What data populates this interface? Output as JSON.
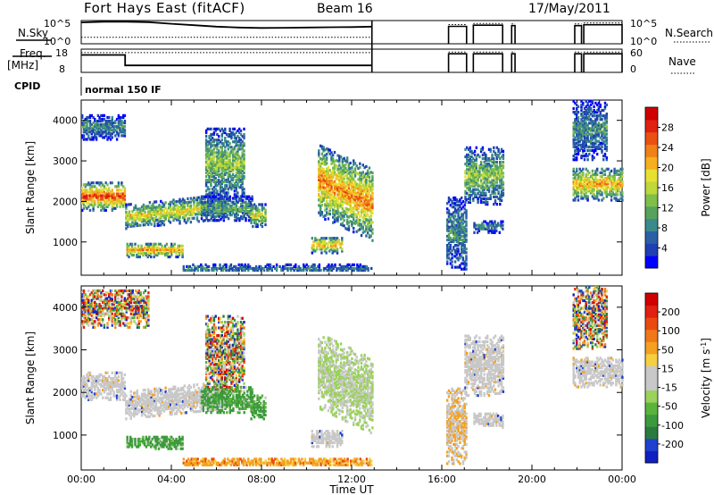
{
  "header": {
    "site": "Fort Hays East (fitACF)",
    "beam": "Beam 16",
    "date": "17/May/2011"
  },
  "chart_data": [
    {
      "type": "line",
      "panel": "noise",
      "left_label": "N.Sky",
      "right_label": "N.Search",
      "left_ticks": [
        "10^5",
        "10^0"
      ],
      "right_ticks": [
        "10^5",
        "10^0"
      ],
      "xlim": [
        0,
        24
      ],
      "series": [
        {
          "name": "N.Sky",
          "style": "solid",
          "x": [
            0,
            1,
            2,
            3,
            4,
            5,
            6,
            7,
            8,
            9,
            10,
            11,
            12,
            12.9
          ],
          "y": [
            0.92,
            0.95,
            0.95,
            0.93,
            0.86,
            0.8,
            0.74,
            0.7,
            0.68,
            0.69,
            0.7,
            0.71,
            0.72,
            0.74
          ]
        },
        {
          "name": "N.Search",
          "style": "dotted",
          "x": [
            0,
            12.9
          ],
          "y": [
            0.28,
            0.28
          ]
        }
      ],
      "segments": [
        {
          "x0": 16.3,
          "x1": 17.1,
          "y": 0.75
        },
        {
          "x0": 17.4,
          "x1": 18.7,
          "y": 0.8
        },
        {
          "x0": 19.1,
          "x1": 19.25,
          "y": 0.78
        },
        {
          "x0": 21.9,
          "x1": 22.2,
          "y": 0.78
        },
        {
          "x0": 22.3,
          "x1": 24,
          "y": 0.82
        }
      ]
    },
    {
      "type": "line",
      "panel": "frequency",
      "left_label_lines": [
        "Freq.",
        "[MHz]"
      ],
      "right_label": "Nave",
      "left_ticks": [
        "18",
        "8"
      ],
      "right_ticks": [
        "60",
        "0"
      ],
      "xlim": [
        0,
        24
      ],
      "series": [
        {
          "name": "Freq.",
          "style": "solid",
          "x": [
            0,
            1.95,
            1.95,
            12.9
          ],
          "y": [
            0.75,
            0.75,
            0.3,
            0.3
          ]
        },
        {
          "name": "Nave",
          "style": "dotted",
          "x": [
            0,
            12.9
          ],
          "y": [
            0.85,
            0.85
          ]
        }
      ],
      "segments": [
        {
          "x0": 16.3,
          "x1": 17.1,
          "y": 0.8
        },
        {
          "x0": 17.4,
          "x1": 18.7,
          "y": 0.8
        },
        {
          "x0": 19.1,
          "x1": 19.25,
          "y": 0.8
        },
        {
          "x0": 21.9,
          "x1": 22.2,
          "y": 0.8
        },
        {
          "x0": 22.3,
          "x1": 24,
          "y": 0.8
        }
      ]
    },
    {
      "type": "table",
      "panel": "cpid",
      "label": "CPID",
      "entries": [
        {
          "x": 0,
          "text": "normal 150 IF"
        }
      ]
    },
    {
      "type": "heatmap",
      "panel": "power",
      "ylabel": "Slant Range [km]",
      "xlim": [
        0,
        24
      ],
      "ylim": [
        180,
        4500
      ],
      "yticks": [
        1000,
        2000,
        3000,
        4000
      ],
      "colorbar": {
        "label": "Power [dB]",
        "ticks": [
          "4",
          "8",
          "12",
          "16",
          "20",
          "24",
          "28"
        ],
        "colors": [
          "#0000ff",
          "#1f3fb4",
          "#2a5fa6",
          "#3a8a8c",
          "#57a35c",
          "#7fbf4a",
          "#bfd83a",
          "#e8e030",
          "#f5b020",
          "#f08018",
          "#ea5010",
          "#e02010",
          "#d00000"
        ]
      },
      "blobs": [
        {
          "t0": 0,
          "t1": 1.95,
          "r0": 1750,
          "r1": 2450,
          "slope": 0,
          "v": 0.85
        },
        {
          "t0": 0,
          "t1": 1.95,
          "r0": 3500,
          "r1": 4100,
          "slope": 0,
          "v": 0.3
        },
        {
          "t0": 1.95,
          "t1": 6.5,
          "r0": 1300,
          "r1": 1900,
          "slope": 250,
          "v": 0.6
        },
        {
          "t0": 5.5,
          "t1": 7.2,
          "r0": 2000,
          "r1": 3800,
          "slope": 0,
          "v": 0.45
        },
        {
          "t0": 2.0,
          "t1": 4.5,
          "r0": 600,
          "r1": 950,
          "slope": 0,
          "v": 0.7
        },
        {
          "t0": 5.3,
          "t1": 7.6,
          "r0": 1500,
          "r1": 2100,
          "slope": 0,
          "v": 0.35
        },
        {
          "t0": 7.5,
          "t1": 8.2,
          "r0": 1350,
          "r1": 1900,
          "slope": 0,
          "v": 0.55
        },
        {
          "t0": 10.5,
          "t1": 12.9,
          "r0": 1600,
          "r1": 3400,
          "slope": -600,
          "v": 0.75
        },
        {
          "t0": 10.2,
          "t1": 11.6,
          "r0": 700,
          "r1": 1100,
          "slope": 0,
          "v": 0.7
        },
        {
          "t0": 4.5,
          "t1": 12.9,
          "r0": 180,
          "r1": 420,
          "slope": 0,
          "v": 0.25
        },
        {
          "t0": 16.2,
          "t1": 17.1,
          "r0": 300,
          "r1": 2100,
          "slope": 0,
          "v": 0.3
        },
        {
          "t0": 17.0,
          "t1": 18.7,
          "r0": 1900,
          "r1": 3300,
          "slope": 0,
          "v": 0.45
        },
        {
          "t0": 17.4,
          "t1": 18.7,
          "r0": 1200,
          "r1": 1500,
          "slope": 0,
          "v": 0.3
        },
        {
          "t0": 21.8,
          "t1": 24,
          "r0": 2000,
          "r1": 2800,
          "slope": 0,
          "v": 0.7
        },
        {
          "t0": 21.8,
          "t1": 23.3,
          "r0": 3000,
          "r1": 4450,
          "slope": 0,
          "v": 0.3
        }
      ]
    },
    {
      "type": "heatmap",
      "panel": "velocity",
      "ylabel": "Slant Range [km]",
      "xlabel": "Time UT",
      "xlim": [
        0,
        24
      ],
      "ylim": [
        180,
        4500
      ],
      "yticks": [
        1000,
        2000,
        3000,
        4000
      ],
      "xticks": [
        "00:00",
        "04:00",
        "08:00",
        "12:00",
        "16:00",
        "20:00",
        "00:00"
      ],
      "colorbar": {
        "label": "Velocity [m s^-1]",
        "ticks": [
          "200",
          "100",
          "50",
          "15",
          "-15",
          "-50",
          "-100",
          "-200"
        ],
        "colors": [
          "#1020c0",
          "#2040d0",
          "#2a7a40",
          "#3c9a3c",
          "#5ab43c",
          "#9ad25a",
          "#c8c8c8",
          "#c8c8c8",
          "#f4d040",
          "#f4a020",
          "#f07818",
          "#ea4a10",
          "#e02010",
          "#d00000"
        ]
      },
      "blobs": [
        {
          "t0": 0,
          "t1": 1.95,
          "r0": 1800,
          "r1": 2450,
          "slope": 0,
          "v": "gray"
        },
        {
          "t0": 1.95,
          "t1": 6.5,
          "r0": 1350,
          "r1": 2000,
          "slope": 250,
          "v": "gray"
        },
        {
          "t0": 5.5,
          "t1": 7.2,
          "r0": 2000,
          "r1": 3800,
          "slope": 0,
          "v": "mix"
        },
        {
          "t0": 2.0,
          "t1": 4.5,
          "r0": 650,
          "r1": 950,
          "slope": 0,
          "v": "green"
        },
        {
          "t0": 5.3,
          "t1": 7.6,
          "r0": 1500,
          "r1": 2100,
          "slope": 0,
          "v": "green"
        },
        {
          "t0": 7.5,
          "t1": 8.2,
          "r0": 1350,
          "r1": 1900,
          "slope": 0,
          "v": "green"
        },
        {
          "t0": 10.5,
          "t1": 12.9,
          "r0": 1600,
          "r1": 3400,
          "slope": -600,
          "v": "greengray"
        },
        {
          "t0": 10.2,
          "t1": 11.6,
          "r0": 700,
          "r1": 1100,
          "slope": 0,
          "v": "gray"
        },
        {
          "t0": 4.5,
          "t1": 12.9,
          "r0": 180,
          "r1": 450,
          "slope": 0,
          "v": "orange"
        },
        {
          "t0": 0,
          "t1": 3,
          "r0": 3500,
          "r1": 4400,
          "slope": 0,
          "v": "mix"
        },
        {
          "t0": 16.2,
          "t1": 17.1,
          "r0": 300,
          "r1": 2100,
          "slope": 0,
          "v": "grayorange"
        },
        {
          "t0": 17.0,
          "t1": 18.7,
          "r0": 1900,
          "r1": 3300,
          "slope": 0,
          "v": "gray"
        },
        {
          "t0": 17.4,
          "t1": 18.7,
          "r0": 1150,
          "r1": 1500,
          "slope": 0,
          "v": "gray"
        },
        {
          "t0": 21.8,
          "t1": 24,
          "r0": 2100,
          "r1": 2800,
          "slope": 0,
          "v": "gray"
        },
        {
          "t0": 21.8,
          "t1": 23.3,
          "r0": 3000,
          "r1": 4450,
          "slope": 0,
          "v": "mix"
        }
      ]
    }
  ]
}
